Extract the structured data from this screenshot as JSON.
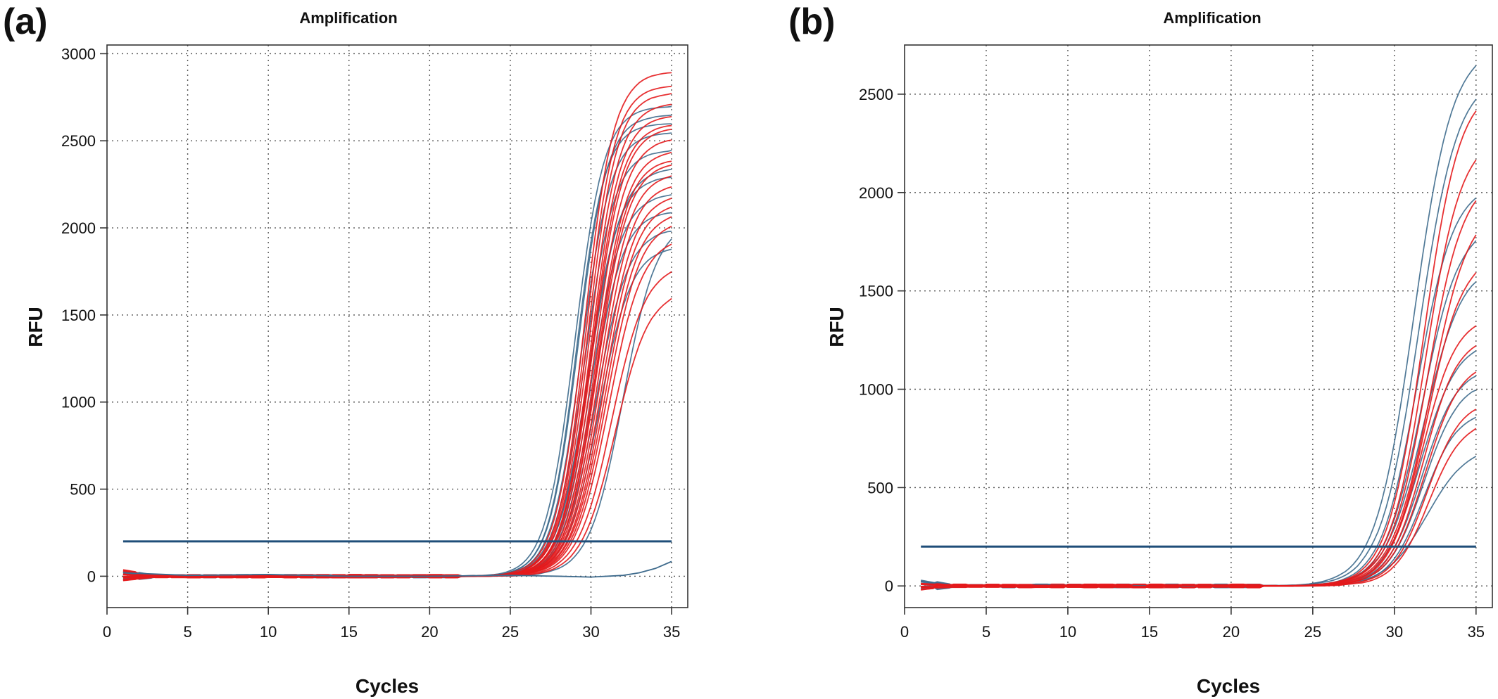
{
  "chart_data": [
    {
      "type": "line",
      "panel_label": "(a)",
      "title": "Amplification",
      "xlabel": "Cycles",
      "ylabel": "RFU",
      "xlim": [
        0,
        36
      ],
      "ylim": [
        -180,
        3050
      ],
      "xticks": [
        0,
        5,
        10,
        15,
        20,
        25,
        30,
        35
      ],
      "yticks": [
        0,
        500,
        1000,
        1500,
        2000,
        2500,
        3000
      ],
      "grid": true,
      "threshold": 200,
      "colors": {
        "series_a": "#e41a1c",
        "series_b": "#3d6a8c",
        "threshold": "#1f4e79"
      },
      "series": [
        {
          "group": "series_b",
          "plateau": 2700,
          "midpoint": 29.0,
          "slope": 1.1
        },
        {
          "group": "series_b",
          "plateau": 2650,
          "midpoint": 29.2,
          "slope": 1.12
        },
        {
          "group": "series_b",
          "plateau": 2550,
          "midpoint": 29.4,
          "slope": 1.1
        },
        {
          "group": "series_b",
          "plateau": 2450,
          "midpoint": 29.6,
          "slope": 1.08
        },
        {
          "group": "series_b",
          "plateau": 2300,
          "midpoint": 29.8,
          "slope": 1.06
        },
        {
          "group": "series_b",
          "plateau": 2200,
          "midpoint": 30.0,
          "slope": 1.05
        },
        {
          "group": "series_b",
          "plateau": 2100,
          "midpoint": 30.1,
          "slope": 1.05
        },
        {
          "group": "series_b",
          "plateau": 2000,
          "midpoint": 30.3,
          "slope": 1.0
        },
        {
          "group": "series_b",
          "plateau": 1900,
          "midpoint": 30.5,
          "slope": 1.0
        },
        {
          "group": "series_b",
          "plateau": 2050,
          "midpoint": 32.0,
          "slope": 0.95
        },
        {
          "group": "series_b",
          "plateau": 2600,
          "midpoint": 29.1,
          "slope": 1.15
        },
        {
          "group": "series_b",
          "plateau": 2350,
          "midpoint": 29.9,
          "slope": 1.02
        },
        {
          "group": "series_a",
          "plateau": 2900,
          "midpoint": 29.6,
          "slope": 1.1
        },
        {
          "group": "series_a",
          "plateau": 2820,
          "midpoint": 29.7,
          "slope": 1.12
        },
        {
          "group": "series_a",
          "plateau": 2780,
          "midpoint": 29.8,
          "slope": 1.1
        },
        {
          "group": "series_a",
          "plateau": 2720,
          "midpoint": 29.9,
          "slope": 1.08
        },
        {
          "group": "series_a",
          "plateau": 2650,
          "midpoint": 30.0,
          "slope": 1.1
        },
        {
          "group": "series_a",
          "plateau": 2580,
          "midpoint": 30.1,
          "slope": 1.06
        },
        {
          "group": "series_a",
          "plateau": 2520,
          "midpoint": 30.2,
          "slope": 1.05
        },
        {
          "group": "series_a",
          "plateau": 2450,
          "midpoint": 30.3,
          "slope": 1.05
        },
        {
          "group": "series_a",
          "plateau": 2380,
          "midpoint": 30.4,
          "slope": 1.04
        },
        {
          "group": "series_a",
          "plateau": 2320,
          "midpoint": 30.5,
          "slope": 1.03
        },
        {
          "group": "series_a",
          "plateau": 2260,
          "midpoint": 30.6,
          "slope": 1.02
        },
        {
          "group": "series_a",
          "plateau": 2200,
          "midpoint": 30.7,
          "slope": 1.0
        },
        {
          "group": "series_a",
          "plateau": 2150,
          "midpoint": 30.8,
          "slope": 1.0
        },
        {
          "group": "series_a",
          "plateau": 2100,
          "midpoint": 30.9,
          "slope": 0.98
        },
        {
          "group": "series_a",
          "plateau": 2050,
          "midpoint": 31.0,
          "slope": 0.97
        },
        {
          "group": "series_a",
          "plateau": 1950,
          "midpoint": 31.1,
          "slope": 0.96
        },
        {
          "group": "series_a",
          "plateau": 1800,
          "midpoint": 31.3,
          "slope": 0.95
        },
        {
          "group": "series_a",
          "plateau": 1650,
          "midpoint": 31.5,
          "slope": 0.95
        },
        {
          "group": "series_a",
          "plateau": 2400,
          "midpoint": 30.35,
          "slope": 1.07
        },
        {
          "group": "series_a",
          "plateau": 2600,
          "midpoint": 30.05,
          "slope": 1.09
        }
      ],
      "negative_control": {
        "group": "series_b",
        "x": [
          1,
          5,
          10,
          15,
          20,
          25,
          28,
          30,
          32,
          33,
          34,
          35
        ],
        "y": [
          20,
          5,
          10,
          0,
          0,
          5,
          0,
          -5,
          5,
          20,
          45,
          85
        ]
      }
    },
    {
      "type": "line",
      "panel_label": "(b)",
      "title": "Amplification",
      "xlabel": "Cycles",
      "ylabel": "RFU",
      "xlim": [
        0,
        36
      ],
      "ylim": [
        -110,
        2750
      ],
      "xticks": [
        0,
        5,
        10,
        15,
        20,
        25,
        30,
        35
      ],
      "yticks": [
        0,
        500,
        1000,
        1500,
        2000,
        2500
      ],
      "grid": true,
      "threshold": 200,
      "colors": {
        "series_a": "#e41a1c",
        "series_b": "#3d6a8c",
        "threshold": "#1f4e79"
      },
      "series": [
        {
          "group": "series_b",
          "plateau": 2750,
          "midpoint": 31.2,
          "slope": 0.85
        },
        {
          "group": "series_b",
          "plateau": 2600,
          "midpoint": 31.5,
          "slope": 0.85
        },
        {
          "group": "series_b",
          "plateau": 2050,
          "midpoint": 31.4,
          "slope": 0.9
        },
        {
          "group": "series_b",
          "plateau": 1850,
          "midpoint": 31.7,
          "slope": 0.88
        },
        {
          "group": "series_b",
          "plateau": 1650,
          "midpoint": 31.8,
          "slope": 0.85
        },
        {
          "group": "series_b",
          "plateau": 1250,
          "midpoint": 31.6,
          "slope": 0.9
        },
        {
          "group": "series_b",
          "plateau": 1120,
          "midpoint": 31.7,
          "slope": 0.92
        },
        {
          "group": "series_b",
          "plateau": 1050,
          "midpoint": 31.8,
          "slope": 0.92
        },
        {
          "group": "series_b",
          "plateau": 900,
          "midpoint": 31.8,
          "slope": 0.95
        },
        {
          "group": "series_b",
          "plateau": 720,
          "midpoint": 32.0,
          "slope": 0.8
        },
        {
          "group": "series_a",
          "plateau": 2550,
          "midpoint": 31.8,
          "slope": 0.9
        },
        {
          "group": "series_a",
          "plateau": 2300,
          "midpoint": 31.9,
          "slope": 0.9
        },
        {
          "group": "series_a",
          "plateau": 2100,
          "midpoint": 32.0,
          "slope": 0.88
        },
        {
          "group": "series_a",
          "plateau": 1950,
          "midpoint": 32.2,
          "slope": 0.85
        },
        {
          "group": "series_a",
          "plateau": 1700,
          "midpoint": 32.0,
          "slope": 0.9
        },
        {
          "group": "series_a",
          "plateau": 1380,
          "midpoint": 31.7,
          "slope": 0.95
        },
        {
          "group": "series_a",
          "plateau": 1280,
          "midpoint": 31.8,
          "slope": 0.95
        },
        {
          "group": "series_a",
          "plateau": 1150,
          "midpoint": 31.9,
          "slope": 0.92
        },
        {
          "group": "series_a",
          "plateau": 950,
          "midpoint": 32.0,
          "slope": 0.95
        },
        {
          "group": "series_a",
          "plateau": 850,
          "midpoint": 32.1,
          "slope": 0.95
        }
      ]
    }
  ]
}
